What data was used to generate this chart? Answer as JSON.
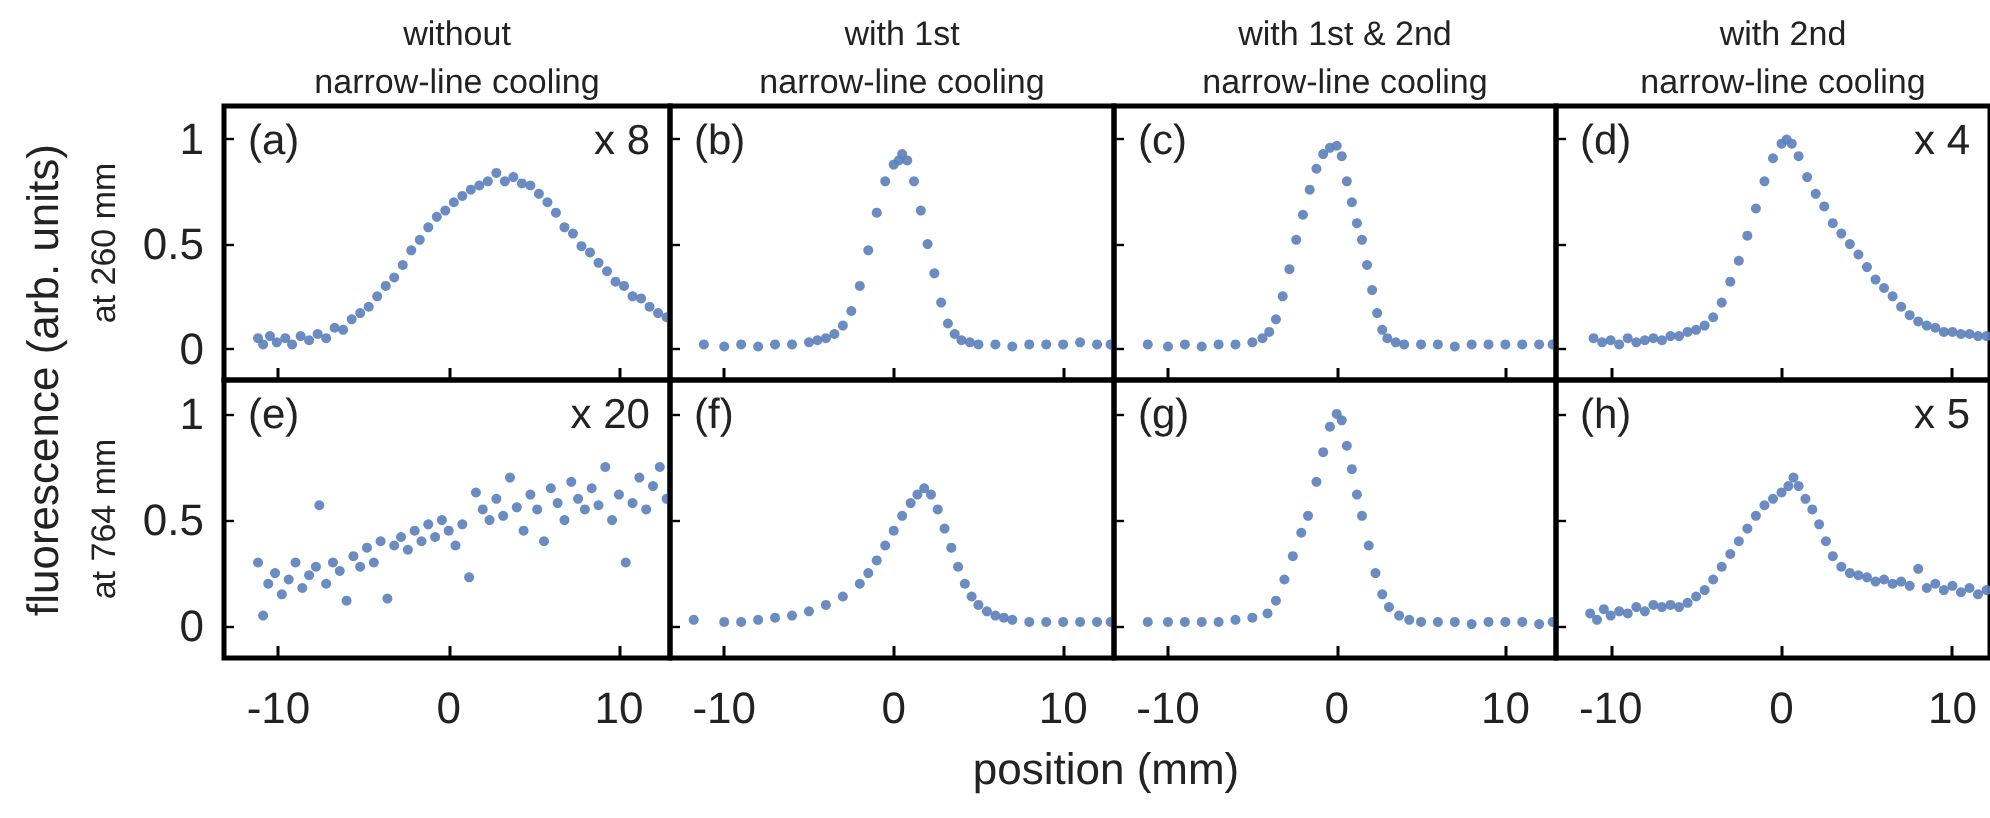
{
  "chart_data": [
    {
      "type": "scatter",
      "title": "without\nnarrow-line cooling",
      "ylabel": "at 260 mm",
      "annotations": [
        "(a)",
        "x 8"
      ],
      "color": "#5b7fbb",
      "marker": "circle",
      "tick_labels": "y",
      "xlim": [
        -13.2,
        13
      ],
      "xticks": [
        -10,
        0,
        10
      ],
      "ylim": [
        -0.15,
        1.16
      ],
      "yticks": [
        0,
        0.5,
        1
      ],
      "x": [
        -11.2,
        -10.9,
        -10.5,
        -10.1,
        -9.6,
        -9.2,
        -8.7,
        -8.2,
        -7.7,
        -7.2,
        -6.7,
        -6.2,
        -5.7,
        -5.2,
        -4.7,
        -4.2,
        -3.7,
        -3.2,
        -2.7,
        -2.2,
        -1.7,
        -1.2,
        -0.7,
        -0.2,
        0.3,
        0.8,
        1.3,
        1.8,
        2.3,
        2.8,
        3.3,
        3.8,
        4.3,
        4.8,
        5.3,
        5.8,
        6.3,
        6.8,
        7.3,
        7.8,
        8.3,
        8.8,
        9.3,
        9.8,
        10.3,
        10.8,
        11.3,
        11.8,
        12.3,
        12.8
      ],
      "values": [
        0.05,
        0.02,
        0.06,
        0.03,
        0.05,
        0.02,
        0.06,
        0.04,
        0.07,
        0.05,
        0.1,
        0.09,
        0.14,
        0.17,
        0.2,
        0.25,
        0.3,
        0.34,
        0.4,
        0.47,
        0.52,
        0.58,
        0.63,
        0.66,
        0.7,
        0.73,
        0.76,
        0.78,
        0.8,
        0.84,
        0.8,
        0.82,
        0.79,
        0.78,
        0.74,
        0.7,
        0.65,
        0.58,
        0.55,
        0.49,
        0.46,
        0.41,
        0.37,
        0.32,
        0.3,
        0.25,
        0.24,
        0.2,
        0.17,
        0.15
      ]
    },
    {
      "type": "scatter",
      "title": "with 1st\nnarrow-line cooling",
      "annotations": [
        "(b)"
      ],
      "color": "#5b7fbb",
      "marker": "circle",
      "tick_labels": false,
      "xlim": [
        -13.2,
        13
      ],
      "xticks": [
        -10,
        0,
        10
      ],
      "ylim": [
        -0.15,
        1.16
      ],
      "yticks": [
        0,
        0.5,
        1
      ],
      "x": [
        -11.2,
        -10,
        -9,
        -8,
        -7,
        -6,
        -5,
        -4.5,
        -4,
        -3.5,
        -3,
        -2.5,
        -2,
        -1.5,
        -1,
        -0.5,
        0,
        0.3,
        0.5,
        0.8,
        1.2,
        1.6,
        2,
        2.4,
        2.8,
        3.2,
        3.6,
        4,
        4.5,
        5,
        6,
        7,
        8,
        9,
        10,
        11,
        12,
        12.8
      ],
      "values": [
        0.02,
        0.01,
        0.02,
        0.01,
        0.02,
        0.02,
        0.03,
        0.04,
        0.05,
        0.07,
        0.11,
        0.18,
        0.3,
        0.47,
        0.65,
        0.8,
        0.88,
        0.9,
        0.93,
        0.9,
        0.8,
        0.66,
        0.5,
        0.36,
        0.22,
        0.12,
        0.07,
        0.04,
        0.03,
        0.02,
        0.02,
        0.01,
        0.02,
        0.02,
        0.02,
        0.03,
        0.02,
        0.02
      ]
    },
    {
      "type": "scatter",
      "title": "with 1st & 2nd\nnarrow-line cooling",
      "annotations": [
        "(c)"
      ],
      "color": "#5b7fbb",
      "marker": "circle",
      "tick_labels": false,
      "xlim": [
        -13.2,
        13
      ],
      "xticks": [
        -10,
        0,
        10
      ],
      "ylim": [
        -0.15,
        1.16
      ],
      "yticks": [
        0,
        0.5,
        1
      ],
      "x": [
        -11.2,
        -10,
        -9,
        -8,
        -7,
        -6,
        -5,
        -4.4,
        -4,
        -3.6,
        -3.2,
        -2.8,
        -2.4,
        -2,
        -1.6,
        -1.2,
        -0.8,
        -0.4,
        0,
        0.3,
        0.6,
        0.9,
        1.2,
        1.5,
        1.8,
        2.1,
        2.4,
        2.7,
        3,
        3.5,
        4,
        5,
        6,
        7,
        8,
        9,
        10,
        11,
        12,
        12.8
      ],
      "values": [
        0.02,
        0.01,
        0.02,
        0.01,
        0.02,
        0.02,
        0.03,
        0.05,
        0.08,
        0.14,
        0.25,
        0.38,
        0.52,
        0.64,
        0.76,
        0.86,
        0.93,
        0.96,
        0.97,
        0.92,
        0.8,
        0.7,
        0.6,
        0.52,
        0.4,
        0.28,
        0.17,
        0.09,
        0.05,
        0.03,
        0.02,
        0.02,
        0.02,
        0.01,
        0.02,
        0.02,
        0.02,
        0.02,
        0.02,
        0.02
      ]
    },
    {
      "type": "scatter",
      "title": "with 2nd\nnarrow-line cooling",
      "annotations": [
        "(d)",
        "x 4"
      ],
      "color": "#5b7fbb",
      "marker": "circle",
      "tick_labels": false,
      "xlim": [
        -13.2,
        12.2
      ],
      "xticks": [
        -10,
        0,
        10
      ],
      "ylim": [
        -0.15,
        1.16
      ],
      "yticks": [
        0,
        0.5,
        1
      ],
      "x": [
        -11,
        -10.5,
        -10,
        -9.5,
        -9,
        -8.5,
        -8,
        -7.5,
        -7,
        -6.5,
        -6,
        -5.5,
        -5,
        -4.5,
        -4,
        -3.5,
        -3,
        -2.5,
        -2,
        -1.5,
        -1,
        -0.5,
        0,
        0.3,
        0.6,
        1,
        1.5,
        2,
        2.5,
        3,
        3.5,
        4,
        4.5,
        5,
        5.5,
        6,
        6.5,
        7,
        7.5,
        8,
        8.5,
        9,
        9.5,
        10,
        10.5,
        11,
        11.5,
        12
      ],
      "values": [
        0.05,
        0.03,
        0.04,
        0.02,
        0.05,
        0.03,
        0.04,
        0.05,
        0.04,
        0.06,
        0.06,
        0.08,
        0.09,
        0.11,
        0.15,
        0.22,
        0.32,
        0.42,
        0.54,
        0.67,
        0.8,
        0.91,
        0.98,
        1.0,
        0.98,
        0.92,
        0.82,
        0.74,
        0.68,
        0.6,
        0.55,
        0.5,
        0.45,
        0.39,
        0.33,
        0.29,
        0.25,
        0.2,
        0.16,
        0.13,
        0.11,
        0.1,
        0.08,
        0.08,
        0.07,
        0.07,
        0.06,
        0.06
      ]
    },
    {
      "type": "scatter",
      "ylabel": "at 764 mm",
      "annotations": [
        "(e)",
        "x 20",
        "fluorescence (arb. units)"
      ],
      "color": "#5b7fbb",
      "marker": "circle",
      "xlim": [
        -13.2,
        13
      ],
      "xticks": [
        -10,
        0,
        10
      ],
      "ylim": [
        -0.15,
        1.16
      ],
      "yticks": [
        0,
        0.5,
        1
      ],
      "x": [
        -11.2,
        -10.9,
        -10.6,
        -10.2,
        -9.8,
        -9.4,
        -9,
        -8.6,
        -8.2,
        -7.8,
        -7.6,
        -7.2,
        -6.8,
        -6.4,
        -6,
        -5.6,
        -5.2,
        -4.8,
        -4.4,
        -4,
        -3.6,
        -3.2,
        -2.8,
        -2.4,
        -2,
        -1.6,
        -1.2,
        -0.8,
        -0.4,
        0,
        0.4,
        0.8,
        1.2,
        1.6,
        2,
        2.4,
        2.8,
        3.2,
        3.6,
        4,
        4.4,
        4.8,
        5.2,
        5.6,
        6,
        6.4,
        6.8,
        7.2,
        7.6,
        8,
        8.4,
        8.8,
        9.2,
        9.6,
        10,
        10.4,
        10.8,
        11.2,
        11.6,
        12,
        12.4,
        12.8
      ],
      "values": [
        0.3,
        0.05,
        0.2,
        0.25,
        0.15,
        0.22,
        0.3,
        0.18,
        0.24,
        0.28,
        0.57,
        0.2,
        0.3,
        0.26,
        0.12,
        0.33,
        0.28,
        0.37,
        0.3,
        0.4,
        0.13,
        0.38,
        0.42,
        0.36,
        0.45,
        0.4,
        0.48,
        0.42,
        0.5,
        0.45,
        0.38,
        0.48,
        0.23,
        0.63,
        0.55,
        0.5,
        0.6,
        0.52,
        0.7,
        0.56,
        0.45,
        0.62,
        0.55,
        0.4,
        0.65,
        0.58,
        0.5,
        0.68,
        0.6,
        0.55,
        0.65,
        0.57,
        0.75,
        0.5,
        0.62,
        0.3,
        0.58,
        0.7,
        0.55,
        0.66,
        0.75,
        0.6
      ]
    },
    {
      "type": "scatter",
      "xlabel": "position (mm)",
      "annotations": [
        "(f)"
      ],
      "color": "#5b7fbb",
      "marker": "circle",
      "tick_labels": "x",
      "xlim": [
        -13.2,
        13
      ],
      "xticks": [
        -10,
        0,
        10
      ],
      "ylim": [
        -0.15,
        1.16
      ],
      "yticks": [
        0,
        0.5,
        1
      ],
      "x": [
        -11.8,
        -10,
        -9,
        -8,
        -7,
        -6,
        -5,
        -4,
        -3,
        -2,
        -1.5,
        -1,
        -0.5,
        0,
        0.5,
        1,
        1.4,
        1.8,
        2.2,
        2.6,
        3,
        3.4,
        3.8,
        4.2,
        4.6,
        5,
        5.5,
        6,
        6.5,
        7,
        8,
        9,
        10,
        11,
        12,
        12.8
      ],
      "values": [
        0.03,
        0.02,
        0.02,
        0.03,
        0.04,
        0.05,
        0.07,
        0.1,
        0.14,
        0.2,
        0.25,
        0.31,
        0.38,
        0.45,
        0.52,
        0.58,
        0.62,
        0.65,
        0.62,
        0.55,
        0.46,
        0.37,
        0.28,
        0.2,
        0.14,
        0.1,
        0.07,
        0.05,
        0.04,
        0.03,
        0.02,
        0.02,
        0.02,
        0.02,
        0.02,
        0.02
      ]
    },
    {
      "type": "scatter",
      "annotations": [
        "(g)"
      ],
      "color": "#5b7fbb",
      "marker": "circle",
      "tick_labels": "x",
      "xlim": [
        -13.2,
        13
      ],
      "xticks": [
        -10,
        0,
        10
      ],
      "ylim": [
        -0.15,
        1.16
      ],
      "yticks": [
        0,
        0.5,
        1
      ],
      "x": [
        -11.2,
        -10,
        -9,
        -8,
        -7,
        -6,
        -5,
        -4.1,
        -3.6,
        -3.1,
        -2.6,
        -2.1,
        -1.7,
        -1.2,
        -0.8,
        -0.4,
        0,
        0.3,
        0.6,
        0.9,
        1.2,
        1.5,
        1.9,
        2.3,
        2.7,
        3.1,
        3.7,
        4.3,
        5,
        6,
        7,
        8,
        9,
        10,
        11,
        12,
        12.8
      ],
      "values": [
        0.02,
        0.02,
        0.02,
        0.02,
        0.02,
        0.03,
        0.04,
        0.06,
        0.12,
        0.22,
        0.33,
        0.44,
        0.52,
        0.68,
        0.82,
        0.94,
        1.0,
        0.97,
        0.85,
        0.74,
        0.62,
        0.52,
        0.38,
        0.25,
        0.15,
        0.09,
        0.05,
        0.03,
        0.02,
        0.02,
        0.02,
        0.01,
        0.02,
        0.02,
        0.02,
        0.01,
        0.02
      ]
    },
    {
      "type": "scatter",
      "annotations": [
        "(h)",
        "x 5"
      ],
      "color": "#5b7fbb",
      "marker": "circle",
      "tick_labels": "x",
      "xlim": [
        -13.2,
        12.2
      ],
      "xticks": [
        -10,
        0,
        10
      ],
      "ylim": [
        -0.15,
        1.16
      ],
      "yticks": [
        0,
        0.5,
        1
      ],
      "x": [
        -11.2,
        -10.8,
        -10.4,
        -10,
        -9.5,
        -9,
        -8.5,
        -8,
        -7.5,
        -7,
        -6.5,
        -6,
        -5.5,
        -5,
        -4.5,
        -4,
        -3.5,
        -3,
        -2.5,
        -2,
        -1.5,
        -1,
        -0.5,
        0,
        0.4,
        0.7,
        1,
        1.4,
        1.8,
        2.2,
        2.6,
        3,
        3.5,
        4,
        4.5,
        5,
        5.5,
        6,
        6.5,
        7,
        7.5,
        8,
        8.5,
        9,
        9.5,
        10,
        10.5,
        11,
        11.5,
        12
      ],
      "values": [
        0.06,
        0.03,
        0.08,
        0.05,
        0.07,
        0.06,
        0.09,
        0.07,
        0.1,
        0.09,
        0.1,
        0.09,
        0.11,
        0.14,
        0.17,
        0.22,
        0.28,
        0.34,
        0.4,
        0.46,
        0.52,
        0.57,
        0.6,
        0.63,
        0.66,
        0.7,
        0.66,
        0.6,
        0.55,
        0.48,
        0.4,
        0.33,
        0.28,
        0.25,
        0.24,
        0.23,
        0.21,
        0.22,
        0.2,
        0.21,
        0.19,
        0.27,
        0.18,
        0.2,
        0.17,
        0.19,
        0.16,
        0.18,
        0.15,
        0.17
      ]
    }
  ]
}
